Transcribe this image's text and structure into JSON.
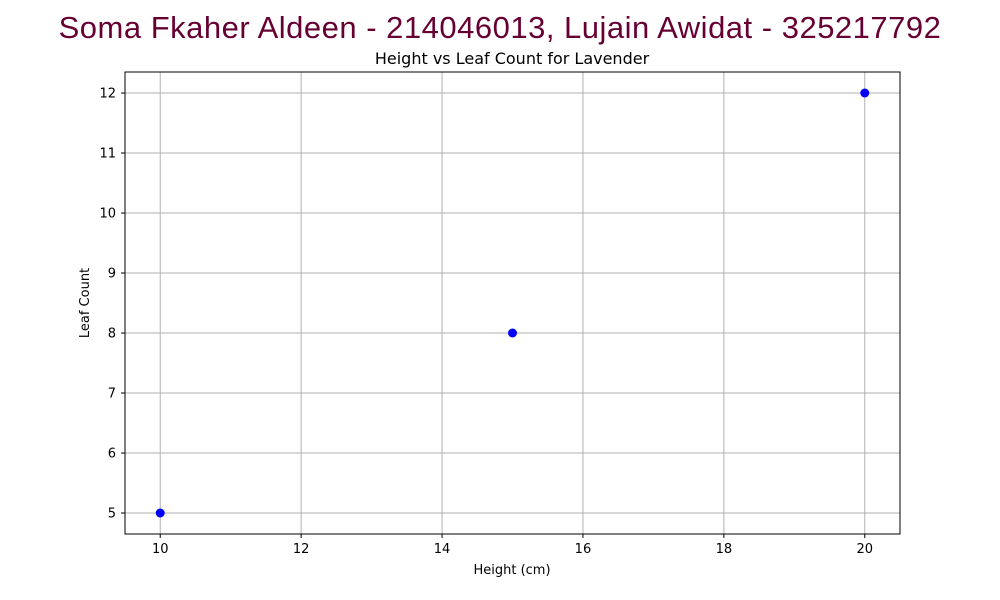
{
  "header": {
    "text": "Soma Fkaher Aldeen - 214046013, Lujain Awidat - 325217792",
    "color": "#660033"
  },
  "chart_data": {
    "type": "scatter",
    "title": "Height vs Leaf Count for Lavender",
    "xlabel": "Height (cm)",
    "ylabel": "Leaf Count",
    "xlim": [
      9.5,
      20.5
    ],
    "ylim": [
      4.65,
      12.35
    ],
    "xticks": [
      10,
      12,
      14,
      16,
      18,
      20
    ],
    "yticks": [
      5,
      6,
      7,
      8,
      9,
      10,
      11,
      12
    ],
    "grid": true,
    "points": [
      {
        "x": 10,
        "y": 5
      },
      {
        "x": 15,
        "y": 8
      },
      {
        "x": 20,
        "y": 12
      }
    ],
    "marker_color": "#0000ff",
    "grid_color": "#b0b0b0"
  }
}
